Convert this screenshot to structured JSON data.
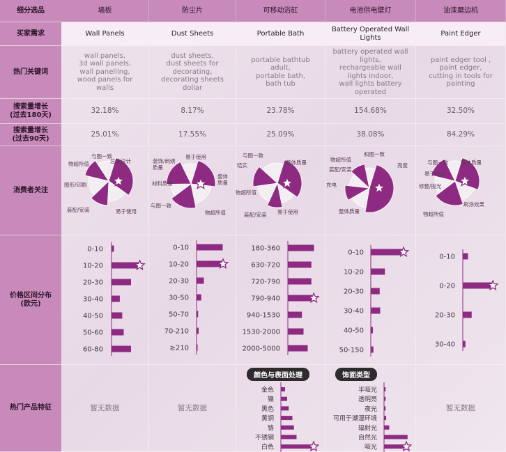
{
  "row_headers": [
    "细分选品",
    "买家需求",
    "热门关键词",
    "搜索量增长\n(过去180天)",
    "搜索量增长\n(过去90天)",
    "消费者关注",
    "价格区间分布\n(欧元)",
    "热门产品特征"
  ],
  "categories_cn": [
    "墙板",
    "防尘片",
    "可移动浴缸",
    "电池供电壁灯",
    "油漆磨边机"
  ],
  "categories_en": [
    "Wall Panels",
    "Dust Sheets",
    "Portable Bath",
    "Battery Operated Wall Lights",
    "Paint Edger"
  ],
  "keywords": [
    "wall panels,\n3d wall panels,\nwall panelling,\nwood panels for\nwalls",
    "dust sheets,\ndust sheets for\ndecorating,\ndecorating sheets\ndollar",
    "portable bathtub\nadult,\nportable bath,\nbath tub",
    "battery operated wall\nlights,\nrechargeable wall\nlights indoor,\nwall lights battery\noperated",
    "paint edger tool ,\npaint edger,\ncutting in tools for\npainting"
  ],
  "growth_180": [
    "32.18%",
    "8.17%",
    "23.78%",
    "154.68%",
    "32.50%"
  ],
  "growth_90": [
    "25.01%",
    "17.55%",
    "25.09%",
    "38.08%",
    "84.29%"
  ],
  "no_data": "暂无数据",
  "feature_titles": [
    "颜色与表面处理",
    "饰面类型"
  ],
  "colors": {
    "accent": "#8e2a82",
    "light": "#f3eef2",
    "header": "#c889bb"
  },
  "pies": [
    {
      "labels": [
        {
          "t": "与图一致"
        },
        {
          "t": "物超所值"
        },
        {
          "t": "总体设计"
        },
        {
          "t": "图形/印刷"
        },
        {
          "t": "装配/安装"
        },
        {
          "t": "易于使用"
        }
      ],
      "slices": [
        {
          "v": 0.3,
          "c": "accent"
        },
        {
          "v": 0.16,
          "c": "light"
        },
        {
          "v": 0.12,
          "c": "accent"
        },
        {
          "v": 0.16,
          "c": "light"
        },
        {
          "v": 0.12,
          "c": "accent"
        },
        {
          "v": 0.14,
          "c": "light"
        }
      ]
    },
    {
      "labels": [
        {
          "t": "易于使用"
        },
        {
          "t": "装饰/刺绣\n质量"
        },
        {
          "t": "材料质量"
        },
        {
          "t": "整体\n质量"
        },
        {
          "t": "与图一致"
        },
        {
          "t": "物超所值"
        }
      ],
      "slices": [
        {
          "v": 0.22,
          "c": "accent"
        },
        {
          "v": 0.2,
          "c": "light"
        },
        {
          "v": 0.18,
          "c": "accent"
        },
        {
          "v": 0.1,
          "c": "light"
        },
        {
          "v": 0.18,
          "c": "accent"
        },
        {
          "v": 0.12,
          "c": "light"
        }
      ]
    },
    {
      "labels": [
        {
          "t": "与图一致"
        },
        {
          "t": "整体质量"
        },
        {
          "t": "结实"
        },
        {
          "t": "物超所值"
        },
        {
          "t": "装配/安装"
        },
        {
          "t": "易于使用"
        }
      ],
      "slices": [
        {
          "v": 0.3,
          "c": "accent"
        },
        {
          "v": 0.12,
          "c": "light"
        },
        {
          "v": 0.1,
          "c": "accent"
        },
        {
          "v": 0.16,
          "c": "light"
        },
        {
          "v": 0.14,
          "c": "accent"
        },
        {
          "v": 0.18,
          "c": "light"
        }
      ]
    },
    {
      "labels": [
        {
          "t": "和图一致"
        },
        {
          "t": "物超所值"
        },
        {
          "t": "亮度"
        },
        {
          "t": "装配/安装"
        },
        {
          "t": "充电"
        },
        {
          "t": "整体质量"
        }
      ],
      "slices": [
        {
          "v": 0.48,
          "c": "accent"
        },
        {
          "v": 0.14,
          "c": "light"
        },
        {
          "v": 0.1,
          "c": "accent"
        },
        {
          "v": 0.1,
          "c": "light"
        },
        {
          "v": 0.1,
          "c": "accent"
        },
        {
          "v": 0.08,
          "c": "light"
        }
      ]
    },
    {
      "labels": [
        {
          "t": "与图一致"
        },
        {
          "t": "整体质量"
        },
        {
          "t": "易于使用"
        },
        {
          "t": "修整/抛光"
        },
        {
          "t": "刷涂效果"
        },
        {
          "t": "物超所值"
        }
      ],
      "slices": [
        {
          "v": 0.26,
          "c": "accent"
        },
        {
          "v": 0.14,
          "c": "light"
        },
        {
          "v": 0.2,
          "c": "accent"
        },
        {
          "v": 0.14,
          "c": "light"
        },
        {
          "v": 0.14,
          "c": "accent"
        },
        {
          "v": 0.12,
          "c": "light"
        }
      ]
    }
  ],
  "chart_data": [
    {
      "type": "bar",
      "title": "Wall Panels",
      "categories": [
        "0-10",
        "10-20",
        "20-30",
        "30-40",
        "40-50",
        "50-60",
        "60-80"
      ],
      "values": [
        5,
        55,
        40,
        17,
        22,
        25,
        40
      ],
      "star": 1
    },
    {
      "type": "bar",
      "title": "Dust Sheets",
      "categories": [
        "0-10",
        "10-20",
        "20-30",
        "30-50",
        "50-70",
        "70-210",
        "≥210"
      ],
      "values": [
        50,
        48,
        14,
        9,
        3,
        4,
        2
      ],
      "star": 1
    },
    {
      "type": "bar",
      "title": "Portable Bath",
      "categories": [
        "180-360",
        "630-720",
        "720-790",
        "790-940",
        "940-1530",
        "1530-2000",
        "2000-5000"
      ],
      "values": [
        50,
        45,
        45,
        47,
        27,
        30,
        38
      ],
      "star": 3
    },
    {
      "type": "bar",
      "title": "Battery Operated Wall Lights",
      "categories": [
        "0-10",
        "10-20",
        "20-30",
        "30-40",
        "40-50",
        "50-150"
      ],
      "values": [
        60,
        27,
        17,
        18,
        4,
        5
      ],
      "star": 0
    },
    {
      "type": "bar",
      "title": "Paint Edger",
      "categories": [
        "0-10",
        "0-20",
        "20-30",
        "30-40"
      ],
      "values": [
        10,
        55,
        17,
        5
      ],
      "star": 1
    },
    {
      "type": "bar",
      "title": "颜色与表面处理",
      "categories": [
        "金色",
        "镍",
        "黑色",
        "黄铜",
        "铬",
        "不锈钢",
        "白色"
      ],
      "values": [
        8,
        12,
        15,
        22,
        25,
        30,
        60
      ],
      "star": 6
    },
    {
      "type": "bar",
      "title": "饰面类型",
      "categories": [
        "半哑光",
        "透明亮",
        "夜光",
        "可用于潮湿环境",
        "辐射光",
        "自然光",
        "哑光"
      ],
      "values": [
        3,
        3,
        3,
        4,
        10,
        45,
        40
      ],
      "star": 6
    }
  ]
}
